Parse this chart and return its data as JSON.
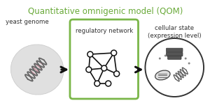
{
  "title": "Quantitative omnigenic model (QOM)",
  "title_color": "#6aaa3a",
  "title_fontsize": 8.5,
  "label1": "yeast genome",
  "label2": "regulatory network",
  "label3": "cellular state\n(expression level)",
  "bg_color": "#ffffff",
  "box_color": "#7ab648",
  "box_bg": "#ffffff",
  "node_color": "#ffffff",
  "node_edge": "#111111",
  "network_edge_color": "#111111",
  "arrow_color": "#111111",
  "ellipse_bg": "#e0e0e0",
  "label_fontsize": 6.2,
  "dna_gray": "#666666",
  "dna_pink": "#cc8899"
}
